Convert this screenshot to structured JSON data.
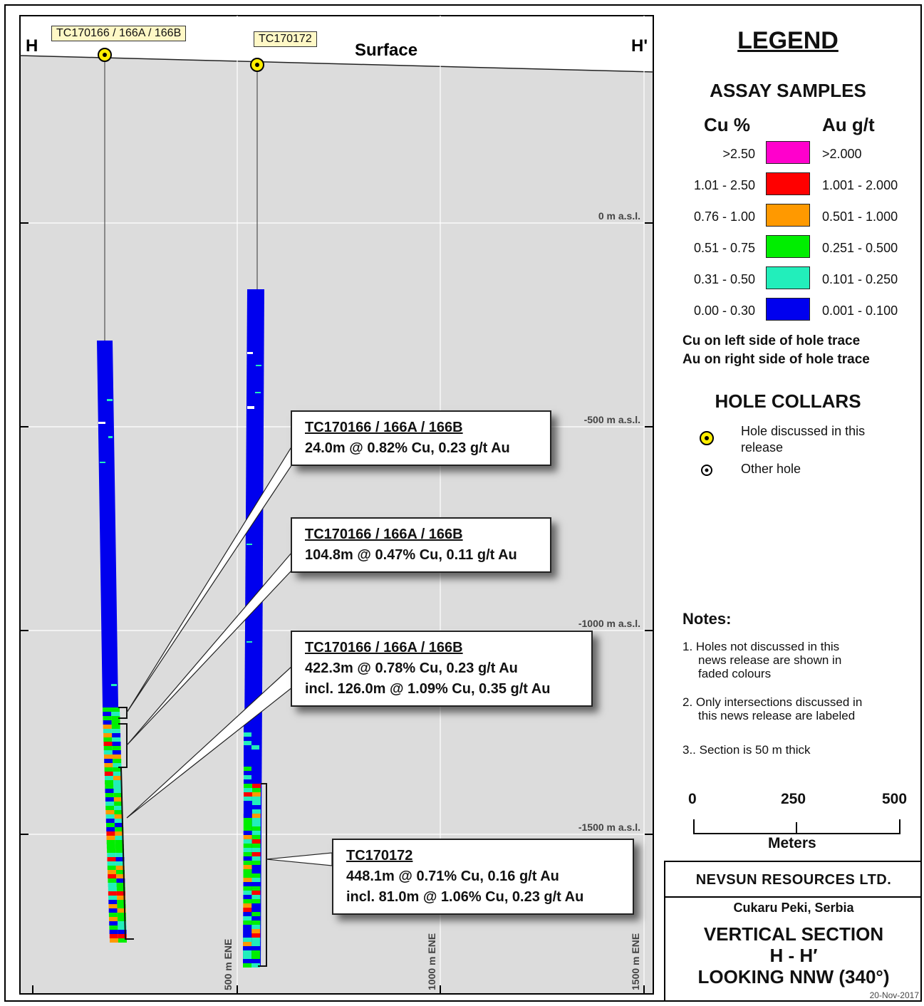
{
  "section": {
    "left_label": "H",
    "right_label": "H'",
    "surface_label": "Surface",
    "elevation_labels": [
      "0 m a.s.l.",
      "-500 m a.s.l.",
      "-1000 m a.s.l.",
      "-1500 m a.s.l."
    ],
    "easting_labels": [
      "500 m ENE",
      "1000 m ENE",
      "1500 m ENE"
    ],
    "background_color": "#dcdcdc"
  },
  "holes": [
    {
      "collar_tag": "TC170166 / 166A / 166B"
    },
    {
      "collar_tag": "TC170172"
    }
  ],
  "callouts": [
    {
      "hole": "TC170166 / 166A / 166B",
      "lines": [
        "24.0m @ 0.82% Cu, 0.23 g/t Au"
      ]
    },
    {
      "hole": "TC170166 / 166A / 166B",
      "lines": [
        "104.8m @ 0.47% Cu, 0.11 g/t Au"
      ]
    },
    {
      "hole": "TC170166 / 166A / 166B",
      "lines": [
        "422.3m @ 0.78% Cu, 0.23 g/t Au",
        "incl. 126.0m @ 1.09% Cu, 0.35 g/t Au"
      ]
    },
    {
      "hole": "TC170172",
      "lines": [
        "448.1m @ 0.71% Cu, 0.16 g/t Au",
        "incl. 81.0m @ 1.06% Cu, 0.23 g/t Au"
      ]
    }
  ],
  "legend": {
    "title": "LEGEND",
    "assay_title": "ASSAY SAMPLES",
    "cu_header": "Cu %",
    "au_header": "Au g/t",
    "classes": [
      {
        "cu": ">2.50",
        "au": ">2.000",
        "color": "#ff00cc"
      },
      {
        "cu": "1.01 - 2.50",
        "au": "1.001 - 2.000",
        "color": "#ff0000"
      },
      {
        "cu": "0.76 - 1.00",
        "au": "0.501 - 1.000",
        "color": "#ff9900"
      },
      {
        "cu": "0.51 - 0.75",
        "au": "0.251 - 0.500",
        "color": "#00ee00"
      },
      {
        "cu": "0.31 - 0.50",
        "au": "0.101 - 0.250",
        "color": "#22eebb"
      },
      {
        "cu": "0.00 - 0.30",
        "au": "0.001 - 0.100",
        "color": "#0000ee"
      }
    ],
    "side_note_1": "Cu on left side of hole trace",
    "side_note_2": "Au on right side of hole trace",
    "collars_title": "HOLE COLLARS",
    "collar_discussed_1": "Hole discussed in this",
    "collar_discussed_2": "release",
    "collar_other": "Other hole"
  },
  "notes": {
    "title": "Notes:",
    "items": [
      [
        "1. Holes not discussed in this",
        "news release are shown in",
        "faded colours"
      ],
      [
        "2. Only intersections discussed in",
        "this news release are labeled"
      ],
      [
        "3.. Section is 50 m thick"
      ]
    ]
  },
  "scale_bar": {
    "ticks": [
      "0",
      "250",
      "500"
    ],
    "unit": "Meters"
  },
  "title_block": {
    "company": "NEVSUN RESOURCES LTD.",
    "location": "Cukaru Peki, Serbia",
    "title_1": "VERTICAL SECTION",
    "title_2": "H - H′",
    "title_3": "LOOKING NNW (340°)",
    "date": "20-Nov-2017"
  }
}
